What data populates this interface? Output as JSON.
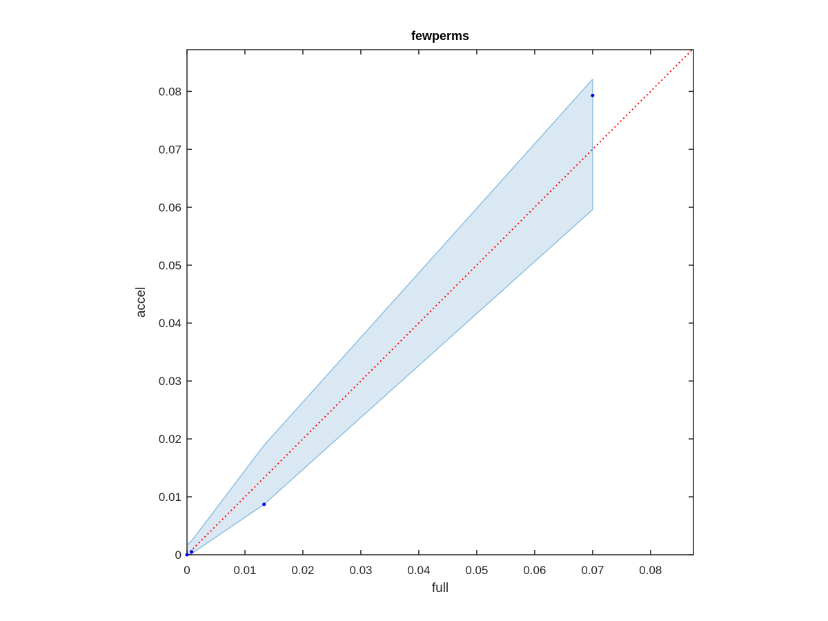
{
  "chart_data": {
    "type": "scatter",
    "title": "fewperms",
    "xlabel": "full",
    "ylabel": "accel",
    "xlim": [
      0,
      0.0874
    ],
    "ylim": [
      0,
      0.0872
    ],
    "xticks": [
      0,
      0.01,
      0.02,
      0.03,
      0.04,
      0.05,
      0.06,
      0.07,
      0.08
    ],
    "yticks": [
      0,
      0.01,
      0.02,
      0.03,
      0.04,
      0.05,
      0.06,
      0.07,
      0.08
    ],
    "band": {
      "color": "#8cc0e0",
      "fill": "#dae8f4",
      "x": [
        0,
        0.0008,
        0.0133,
        0.07
      ],
      "lower": [
        0,
        0.0002,
        0.0087,
        0.0596
      ],
      "upper": [
        0.0017,
        0.0024,
        0.0189,
        0.0821
      ]
    },
    "points": {
      "color": "#0000ee",
      "x": [
        0,
        0.0008,
        0.0133,
        0.07
      ],
      "values": [
        0,
        0.0005,
        0.0087,
        0.0793
      ]
    },
    "reference_line": {
      "color": "#ff0000",
      "x": [
        0,
        0.0874
      ],
      "values": [
        0,
        0.0874
      ]
    }
  }
}
